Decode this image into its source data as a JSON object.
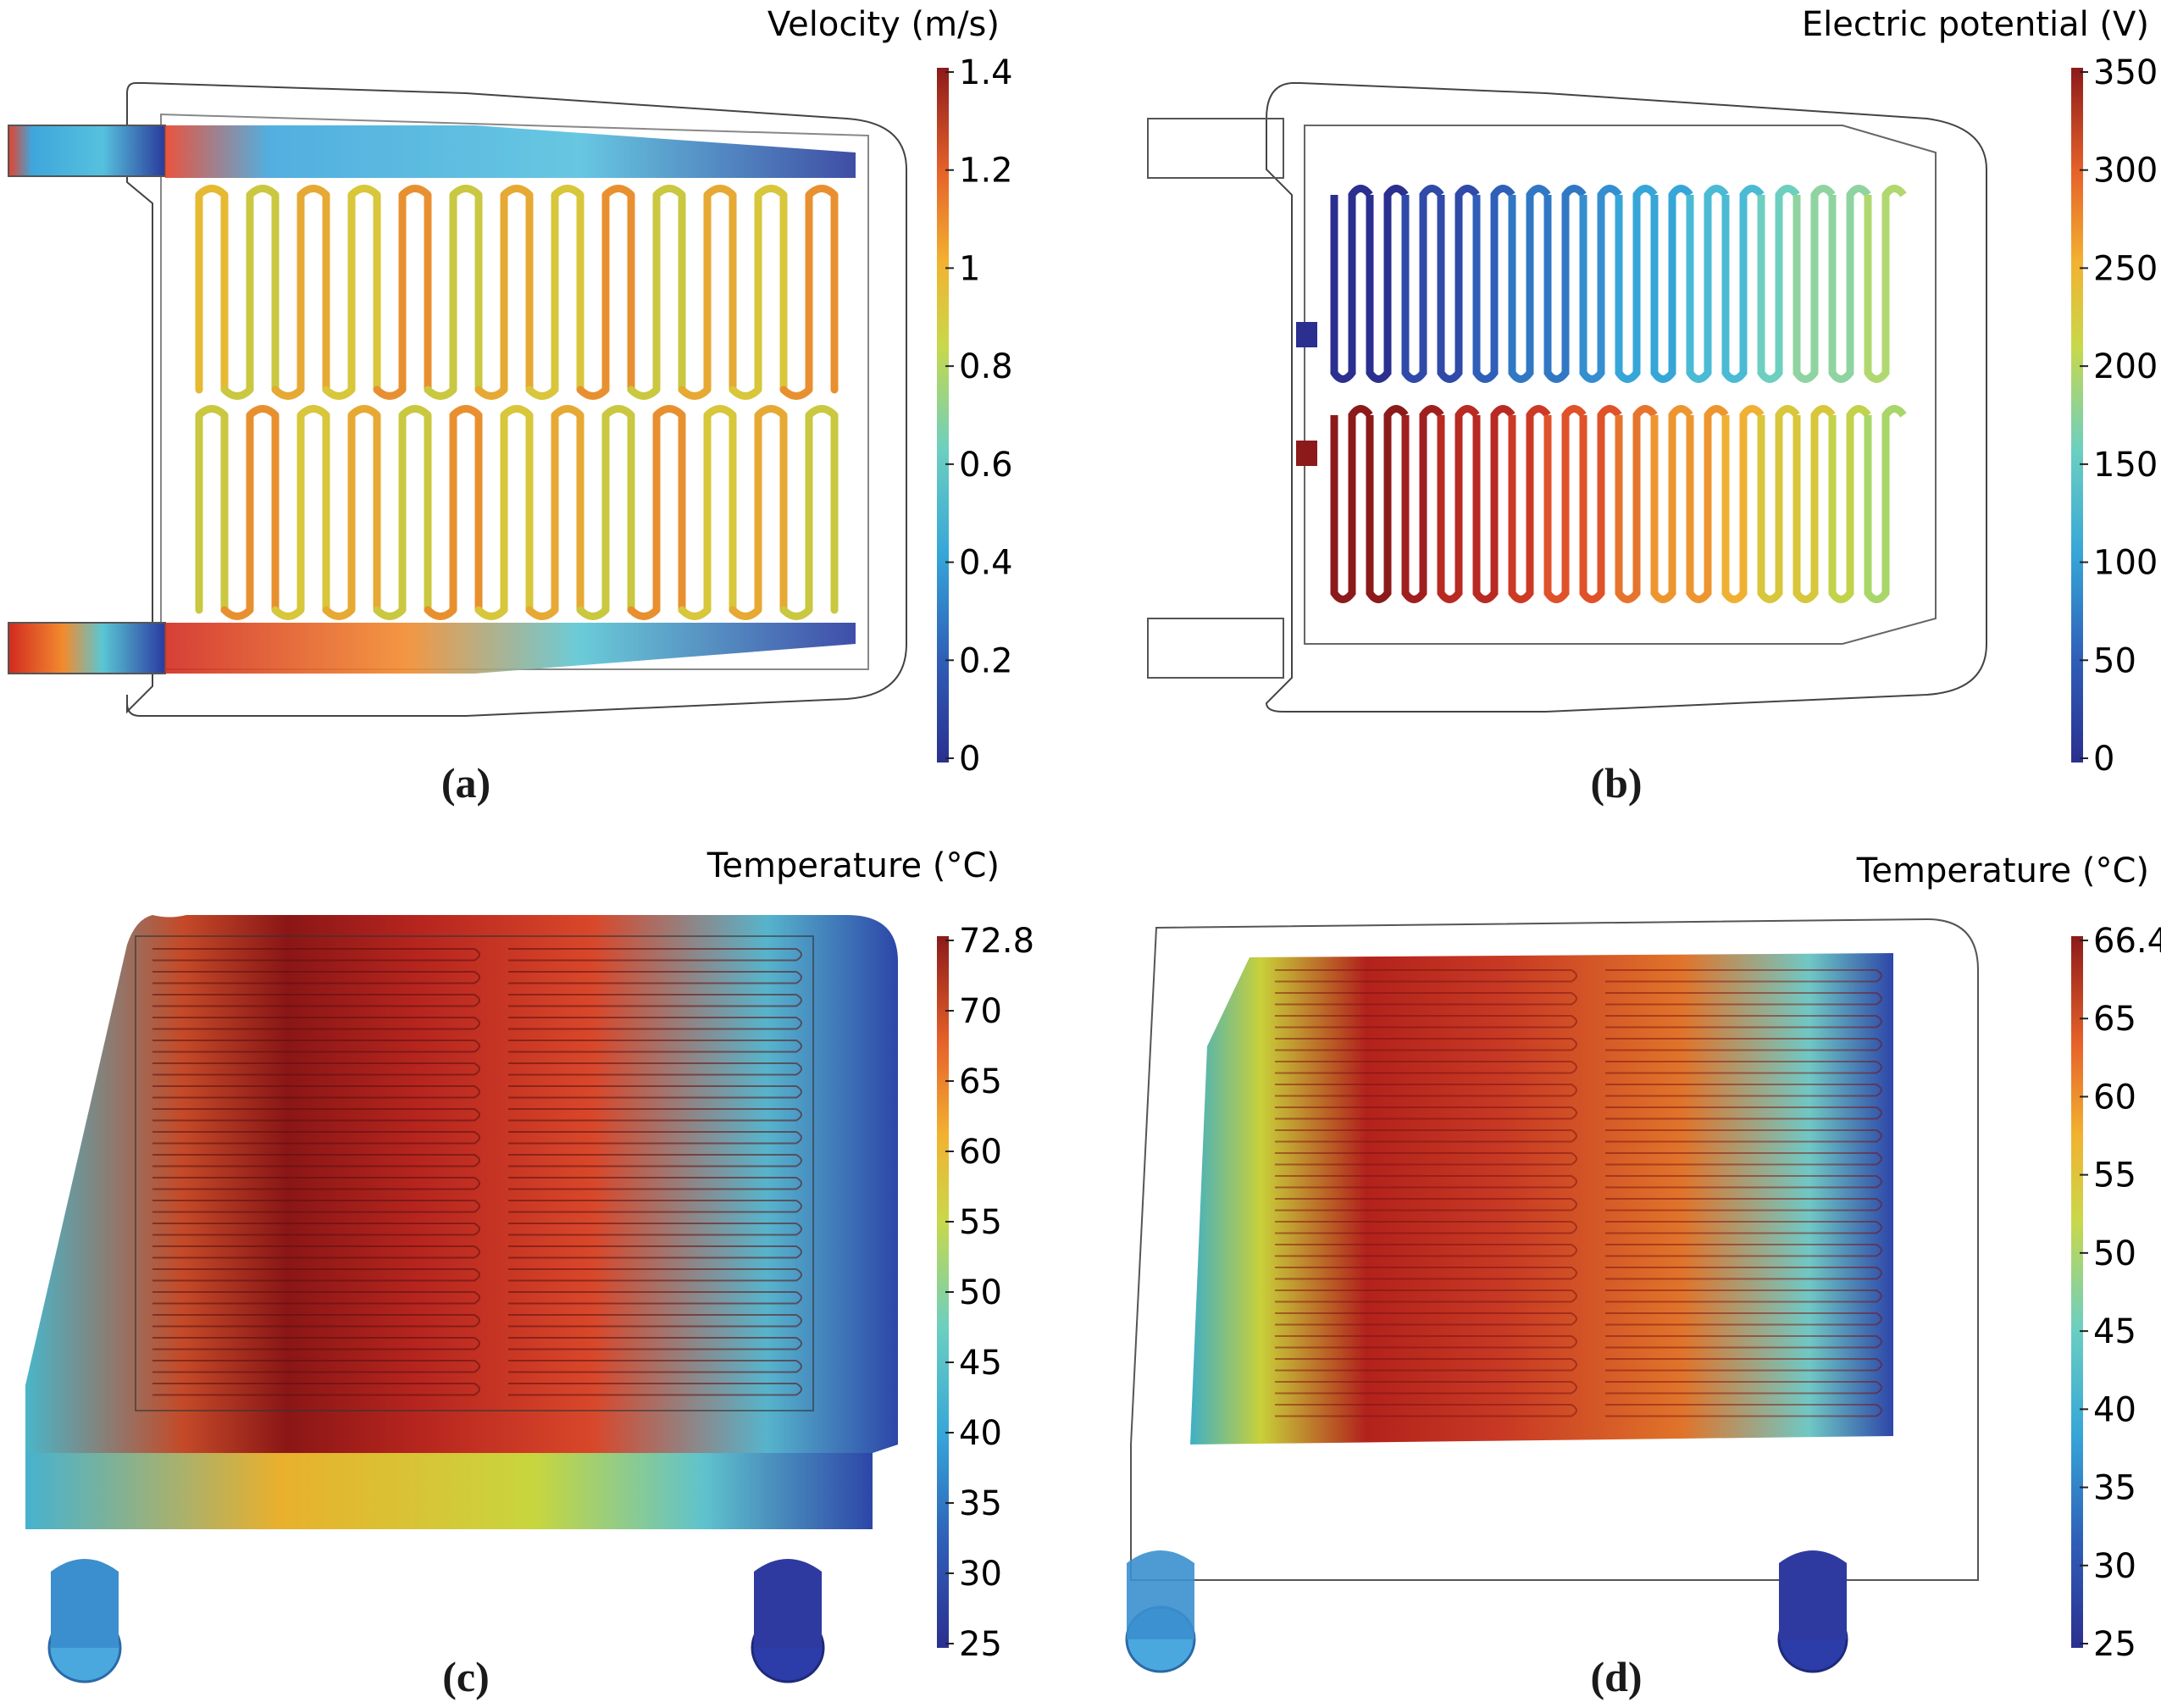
{
  "panels": [
    {
      "id": "a",
      "caption": "(a)",
      "legend_title": "Velocity (m/s)",
      "ticks": [
        "1.4",
        "1.2",
        "1",
        "0.8",
        "0.6",
        "0.4",
        "0.2",
        "0"
      ],
      "colormap": "rainbow"
    },
    {
      "id": "b",
      "caption": "(b)",
      "legend_title": "Electric potential (V)",
      "ticks": [
        "350",
        "300",
        "250",
        "200",
        "150",
        "100",
        "50",
        "0"
      ],
      "colormap": "rainbow"
    },
    {
      "id": "c",
      "caption": "(c)",
      "legend_title": "Temperature (°C)",
      "ticks": [
        "72.8",
        "70",
        "65",
        "60",
        "55",
        "50",
        "45",
        "40",
        "35",
        "30",
        "25"
      ],
      "colormap": "rainbow"
    },
    {
      "id": "d",
      "caption": "(d)",
      "legend_title": "Temperature (°C)",
      "ticks": [
        "66.4",
        "65",
        "60",
        "55",
        "50",
        "45",
        "40",
        "35",
        "30",
        "25"
      ],
      "colormap": "rainbow"
    }
  ]
}
